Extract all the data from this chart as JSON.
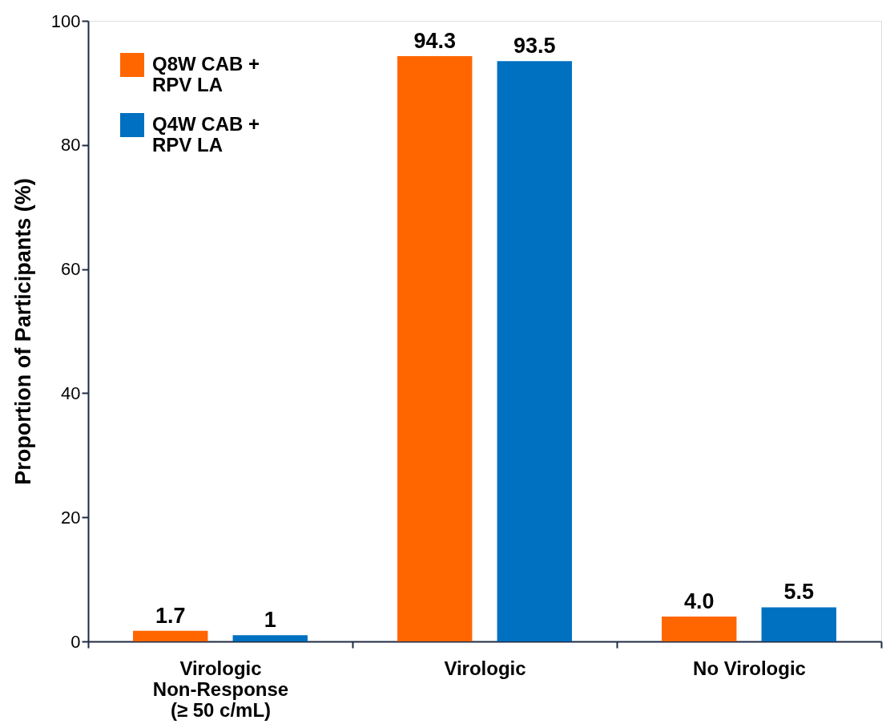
{
  "chart_data": {
    "type": "bar",
    "ylabel": "Proportion of Participants (%)",
    "categories": [
      "Virologic\nNon-Response\n (≥ 50 c/mL)",
      "Virologic",
      "No Virologic"
    ],
    "series": [
      {
        "name": "Q8W CAB +\nRPV LA",
        "color": "#ff6600",
        "values": [
          1.7,
          94.3,
          4.0
        ],
        "value_labels": [
          "1.7",
          "94.3",
          "4.0"
        ]
      },
      {
        "name": "Q4W CAB +\nRPV LA",
        "color": "#0070c0",
        "values": [
          1,
          93.5,
          5.5
        ],
        "value_labels": [
          "1",
          "93.5",
          "5.5"
        ]
      }
    ],
    "ylim": [
      0,
      100
    ],
    "yticks": [
      0,
      20,
      40,
      60,
      80,
      100
    ],
    "grid": false,
    "legend": "top left"
  }
}
